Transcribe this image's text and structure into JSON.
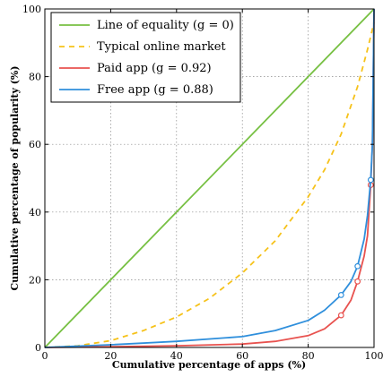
{
  "chart_data": {
    "type": "line",
    "title": "",
    "xlabel": "Cumulative percentage of apps (%)",
    "ylabel": "Cumulative percentage of popularity (%)",
    "xlim": [
      0,
      100
    ],
    "ylim": [
      0,
      100
    ],
    "xticks": [
      "0",
      "20",
      "40",
      "60",
      "80",
      "100"
    ],
    "yticks": [
      "0",
      "20",
      "40",
      "60",
      "80",
      "100"
    ],
    "grid": true,
    "legend_position": "top-left",
    "series": [
      {
        "name": "Line of equality (g = 0)",
        "color": "#77c043",
        "style": "solid",
        "x": [
          0,
          100
        ],
        "y": [
          0,
          100
        ]
      },
      {
        "name": "Typical online market",
        "color": "#f6c21a",
        "style": "dashed",
        "x": [
          0,
          10,
          20,
          30,
          40,
          50,
          60,
          70,
          80,
          85,
          90,
          95,
          98,
          100
        ],
        "y": [
          0,
          0.5,
          2,
          5,
          9,
          14.5,
          22,
          31.5,
          44.5,
          52.5,
          63,
          77,
          88,
          96
        ]
      },
      {
        "name": "Paid app (g = 0.92)",
        "color": "#e8524f",
        "style": "solid",
        "x": [
          0,
          20,
          40,
          60,
          70,
          80,
          85,
          90,
          93,
          95,
          97,
          98,
          99,
          99.5,
          100
        ],
        "y": [
          0,
          0.2,
          0.5,
          1,
          1.8,
          3.5,
          5.5,
          9.5,
          14,
          19.5,
          27,
          33,
          48,
          60,
          100
        ],
        "markers": [
          {
            "x": 90,
            "y": 9.5
          },
          {
            "x": 95,
            "y": 19.5
          },
          {
            "x": 99,
            "y": 48
          }
        ]
      },
      {
        "name": "Free app (g = 0.88)",
        "color": "#2f8fdc",
        "style": "solid",
        "x": [
          0,
          20,
          40,
          60,
          70,
          80,
          85,
          90,
          93,
          95,
          97,
          98,
          99,
          99.5,
          100
        ],
        "y": [
          0,
          0.8,
          1.8,
          3.2,
          5,
          8,
          11,
          15.5,
          19.5,
          24,
          32,
          39,
          49.5,
          60,
          100
        ],
        "markers": [
          {
            "x": 90,
            "y": 15.5
          },
          {
            "x": 95,
            "y": 24
          },
          {
            "x": 99,
            "y": 49.5
          }
        ]
      }
    ]
  }
}
